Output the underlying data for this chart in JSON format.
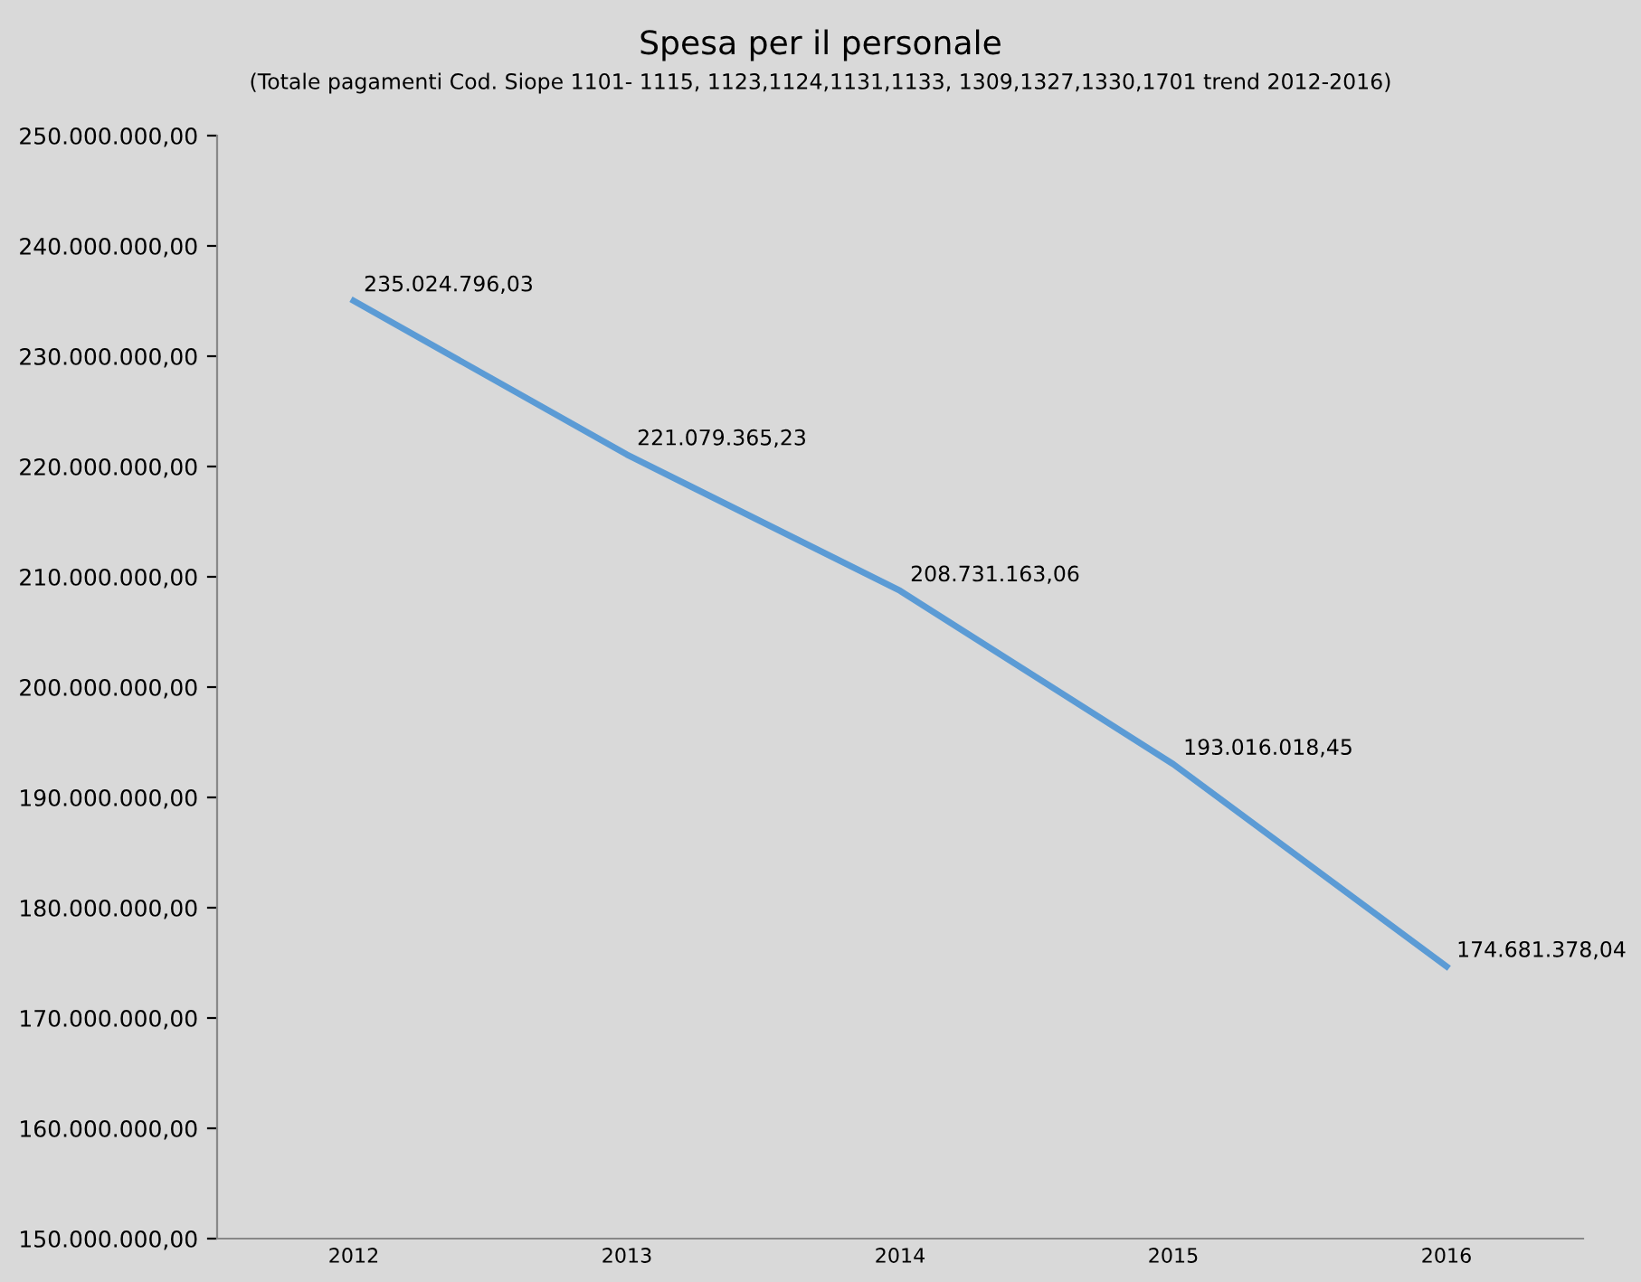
{
  "chart_data": {
    "type": "line",
    "title": "Spesa per il personale",
    "subtitle": "(Totale pagamenti Cod. Siope 1101- 1115, 1123,1124,1131,1133, 1309,1327,1330,1701 trend 2012-2016)",
    "categories": [
      "2012",
      "2013",
      "2014",
      "2015",
      "2016"
    ],
    "series": [
      {
        "color": "#5b9bd5",
        "values": [
          235024796.03,
          221079365.23,
          208731163.06,
          193016018.45,
          174681378.04
        ],
        "value_labels": [
          "235.024.796,03",
          "221.079.365,23",
          "208.731.163,06",
          "193.016.018,45",
          "174.681.378,04"
        ]
      }
    ],
    "ylim": [
      150000000,
      250000000
    ],
    "yticks": [
      {
        "value": 150000000,
        "label": "150.000.000,00"
      },
      {
        "value": 160000000,
        "label": "160.000.000,00"
      },
      {
        "value": 170000000,
        "label": "170.000.000,00"
      },
      {
        "value": 180000000,
        "label": "180.000.000,00"
      },
      {
        "value": 190000000,
        "label": "190.000.000,00"
      },
      {
        "value": 200000000,
        "label": "200.000.000,00"
      },
      {
        "value": 210000000,
        "label": "210.000.000,00"
      },
      {
        "value": 220000000,
        "label": "220.000.000,00"
      },
      {
        "value": 230000000,
        "label": "230.000.000,00"
      },
      {
        "value": 240000000,
        "label": "240.000.000,00"
      },
      {
        "value": 250000000,
        "label": "250.000.000,00"
      }
    ],
    "grid": false,
    "marker": "none",
    "line_style": "solid"
  }
}
